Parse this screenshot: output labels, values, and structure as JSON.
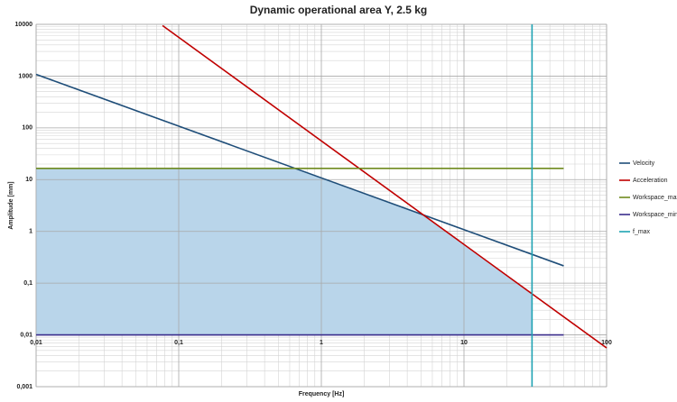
{
  "chart_data": {
    "type": "line",
    "title": "Dynamic operational area Y, 2.5 kg",
    "x_label": "Frequency [Hz]",
    "y_label": "Amplitude [mm]",
    "log_x": true,
    "log_y": true,
    "grid": true,
    "legend": "right",
    "xlim": [
      0.01,
      100
    ],
    "ylim": [
      0.001,
      10000
    ],
    "xticks": [
      {
        "value": 0.01,
        "label": "0,01"
      },
      {
        "value": 0.1,
        "label": "0,1"
      },
      1,
      10,
      100
    ],
    "yticks": [
      {
        "value": 0.001,
        "label": "0,001"
      },
      {
        "value": 0.01,
        "label": "0,01"
      },
      {
        "value": 0.1,
        "label": "0,1"
      },
      1,
      10,
      100,
      1000,
      10000
    ],
    "series": [
      {
        "name": "Velocity",
        "color": "#1f4e79",
        "x": [
          0.01,
          50
        ],
        "values": [
          1080,
          0.216
        ]
      },
      {
        "name": "Acceleration",
        "color": "#c00000",
        "x": [
          0.077,
          100
        ],
        "values": [
          9450,
          0.0056
        ]
      },
      {
        "name": "Workspace_max",
        "color": "#6f8a1e",
        "x": [
          0.01,
          50
        ],
        "values": [
          16.5,
          16.5
        ]
      },
      {
        "name": "Workspace_min",
        "color": "#3a2d8c",
        "x": [
          0.01,
          50
        ],
        "values": [
          0.01,
          0.01
        ]
      },
      {
        "name": "f_max",
        "color": "#1fa3b3",
        "x": [
          30,
          30
        ],
        "values": [
          0.001,
          10000
        ]
      }
    ]
  }
}
